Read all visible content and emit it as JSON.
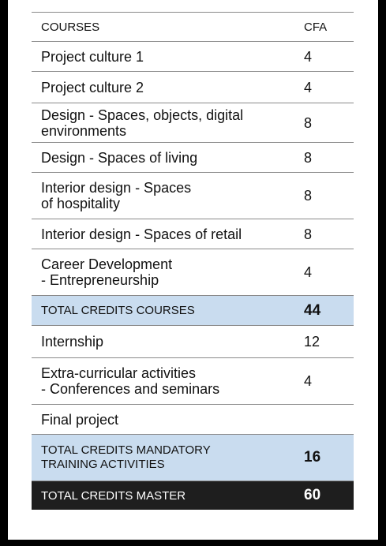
{
  "table": {
    "header": {
      "course": "COURSES",
      "credits": "CFA"
    },
    "rows": [
      {
        "lines": [
          "Project culture 1"
        ],
        "credits": "4"
      },
      {
        "lines": [
          "Project culture 2"
        ],
        "credits": "4"
      },
      {
        "lines": [
          "Design - Spaces, objects, digital",
          "environments"
        ],
        "credits": "8"
      },
      {
        "lines": [
          "Design - Spaces of living"
        ],
        "credits": "8"
      },
      {
        "lines": [
          "Interior design - Spaces",
          "of hospitality"
        ],
        "credits": "8"
      },
      {
        "lines": [
          "Interior design - Spaces of retail"
        ],
        "credits": "8"
      },
      {
        "lines": [
          "Career Development",
          "- Entrepreneurship"
        ],
        "credits": "4"
      }
    ],
    "total_courses": {
      "label": "TOTAL CREDITS COURSES",
      "credits": "44"
    },
    "activities": [
      {
        "lines": [
          "Internship"
        ],
        "credits": "12"
      },
      {
        "lines": [
          "Extra-curricular activities",
          "- Conferences and seminars"
        ],
        "credits": "4"
      },
      {
        "lines": [
          "Final project"
        ],
        "credits": ""
      }
    ],
    "total_mandatory": {
      "lines": [
        "TOTAL CREDITS MANDATORY",
        "TRAINING ACTIVITIES"
      ],
      "credits": "16"
    },
    "total_master": {
      "label": "TOTAL CREDITS MASTER",
      "credits": "60"
    }
  },
  "colors": {
    "page_background": "#000000",
    "sheet_background": "#ffffff",
    "total_row_background": "#c9dcef",
    "grand_total_background": "#1e1e1e"
  }
}
